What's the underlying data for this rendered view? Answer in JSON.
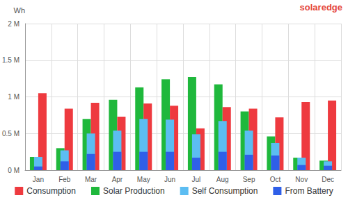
{
  "chart_data": {
    "type": "bar",
    "y_label": "Wh",
    "logo": "solaredge",
    "categories": [
      "Jan",
      "Feb",
      "Mar",
      "Apr",
      "May",
      "Jun",
      "Jul",
      "Aug",
      "Sep",
      "Oct",
      "Nov",
      "Dec"
    ],
    "series": [
      {
        "name": "Consumption",
        "color": "#ee3a3f",
        "values": [
          1050000,
          840000,
          920000,
          730000,
          910000,
          880000,
          570000,
          860000,
          840000,
          720000,
          930000,
          950000
        ]
      },
      {
        "name": "Solar Production",
        "color": "#1fb83c",
        "values": [
          180000,
          300000,
          700000,
          960000,
          1130000,
          1240000,
          1270000,
          1170000,
          800000,
          460000,
          170000,
          130000
        ]
      },
      {
        "name": "Self Consumption",
        "color": "#5cbdf2",
        "values": [
          180000,
          270000,
          500000,
          540000,
          700000,
          690000,
          490000,
          670000,
          540000,
          370000,
          170000,
          120000
        ]
      },
      {
        "name": "From Battery",
        "color": "#2f5fe8",
        "values": [
          50000,
          120000,
          220000,
          250000,
          250000,
          250000,
          170000,
          250000,
          210000,
          200000,
          70000,
          60000
        ]
      }
    ],
    "ylim": [
      0,
      2000000
    ],
    "yticks": [
      {
        "value": 0,
        "label": "0 M"
      },
      {
        "value": 500000,
        "label": "0.5 M"
      },
      {
        "value": 1000000,
        "label": "1 M"
      },
      {
        "value": 1500000,
        "label": "1.5 M"
      },
      {
        "value": 2000000,
        "label": "2 M"
      }
    ],
    "grid": true,
    "legend": "bottom"
  }
}
